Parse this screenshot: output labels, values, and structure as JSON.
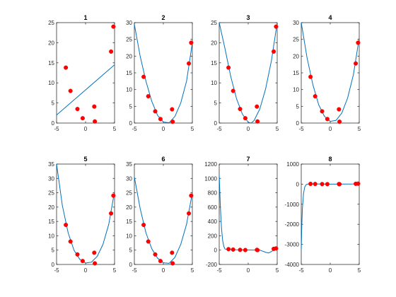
{
  "figure": {
    "background": "#ffffff",
    "point_color": "#ff0000",
    "curve_color": "#0072bd"
  },
  "chart_data": [
    {
      "type": "scatter",
      "title": "1",
      "xlim": [
        -5,
        5
      ],
      "ylim": [
        0,
        25
      ],
      "xticks": [
        -5,
        0,
        5
      ],
      "yticks": [
        0,
        5,
        10,
        15,
        20,
        25
      ],
      "points": {
        "x": [
          -3.4,
          -2.6,
          -1.4,
          -0.5,
          1.5,
          1.6,
          4.4,
          4.8
        ],
        "y": [
          13.8,
          8.0,
          3.5,
          1.2,
          4.1,
          0.4,
          17.8,
          24.0
        ]
      },
      "curve": {
        "x": [
          -5,
          5
        ],
        "y": [
          2.0,
          14.5
        ]
      }
    },
    {
      "type": "scatter",
      "title": "2",
      "xlim": [
        -5,
        5
      ],
      "ylim": [
        0,
        30
      ],
      "xticks": [
        -5,
        0,
        5
      ],
      "yticks": [
        0,
        5,
        10,
        15,
        20,
        25,
        30
      ],
      "points": {
        "x": [
          -3.4,
          -2.6,
          -1.4,
          -0.5,
          1.5,
          1.6,
          4.4,
          4.8
        ],
        "y": [
          13.8,
          8.0,
          3.5,
          1.2,
          4.1,
          0.4,
          17.8,
          24.0
        ]
      },
      "curve": {
        "x": [
          -5,
          -4,
          -3,
          -2,
          -1,
          0,
          1,
          2,
          3,
          4,
          5
        ],
        "y": [
          29.5,
          20.0,
          12.5,
          6.5,
          2.3,
          0.3,
          0.1,
          2.0,
          6.0,
          12.5,
          24.0
        ]
      }
    },
    {
      "type": "scatter",
      "title": "3",
      "xlim": [
        -5,
        5
      ],
      "ylim": [
        0,
        25
      ],
      "xticks": [
        -5,
        0,
        5
      ],
      "yticks": [
        0,
        5,
        10,
        15,
        20,
        25
      ],
      "points": {
        "x": [
          -3.4,
          -2.6,
          -1.4,
          -0.5,
          1.5,
          1.6,
          4.4,
          4.8
        ],
        "y": [
          13.8,
          8.0,
          3.5,
          1.2,
          4.1,
          0.4,
          17.8,
          24.0
        ]
      },
      "curve": {
        "x": [
          -5,
          -4,
          -3,
          -2,
          -1,
          0,
          0.5,
          1,
          2,
          3,
          4,
          5
        ],
        "y": [
          25.0,
          18.5,
          11.5,
          6.0,
          2.2,
          0.2,
          0.0,
          0.6,
          3.5,
          8.5,
          15.5,
          25.0
        ]
      }
    },
    {
      "type": "scatter",
      "title": "4",
      "xlim": [
        -5,
        5
      ],
      "ylim": [
        0,
        30
      ],
      "xticks": [
        -5,
        0,
        5
      ],
      "yticks": [
        0,
        5,
        10,
        15,
        20,
        25,
        30
      ],
      "points": {
        "x": [
          -3.4,
          -2.6,
          -1.4,
          -0.5,
          1.5,
          1.6,
          4.4,
          4.8
        ],
        "y": [
          13.8,
          8.0,
          3.5,
          1.2,
          4.1,
          0.4,
          17.8,
          24.0
        ]
      },
      "curve": {
        "x": [
          -5,
          -4,
          -3,
          -2,
          -1,
          0,
          1,
          2,
          3,
          4,
          5
        ],
        "y": [
          30.0,
          19.5,
          11.5,
          5.5,
          2.0,
          0.5,
          0.8,
          3.0,
          7.5,
          14.5,
          25.5
        ]
      }
    },
    {
      "type": "scatter",
      "title": "5",
      "xlim": [
        -5,
        5
      ],
      "ylim": [
        0,
        35
      ],
      "xticks": [
        -5,
        0,
        5
      ],
      "yticks": [
        0,
        5,
        10,
        15,
        20,
        25,
        30,
        35
      ],
      "points": {
        "x": [
          -3.4,
          -2.6,
          -1.4,
          -0.5,
          1.5,
          1.6,
          4.4,
          4.8
        ],
        "y": [
          13.8,
          8.0,
          3.5,
          1.2,
          4.1,
          0.4,
          17.8,
          24.0
        ]
      },
      "curve": {
        "x": [
          -5,
          -4,
          -3,
          -2,
          -1,
          0,
          1,
          2,
          3,
          4,
          5
        ],
        "y": [
          35.0,
          20.5,
          11.0,
          5.0,
          1.8,
          0.5,
          0.8,
          2.8,
          7.0,
          14.0,
          25.5
        ]
      }
    },
    {
      "type": "scatter",
      "title": "6",
      "xlim": [
        -5,
        5
      ],
      "ylim": [
        0,
        35
      ],
      "xticks": [
        -5,
        0,
        5
      ],
      "yticks": [
        0,
        5,
        10,
        15,
        20,
        25,
        30,
        35
      ],
      "points": {
        "x": [
          -3.4,
          -2.6,
          -1.4,
          -0.5,
          1.5,
          1.6,
          4.4,
          4.8
        ],
        "y": [
          13.8,
          8.0,
          3.5,
          1.2,
          4.1,
          0.4,
          17.8,
          24.0
        ]
      },
      "curve": {
        "x": [
          -5,
          -4,
          -3,
          -2,
          -1,
          0,
          1,
          2,
          3,
          4,
          5
        ],
        "y": [
          30.5,
          19.5,
          11.0,
          5.5,
          2.2,
          0.6,
          0.4,
          2.5,
          7.0,
          14.0,
          25.0
        ]
      }
    },
    {
      "type": "scatter",
      "title": "7",
      "xlim": [
        -5,
        5
      ],
      "ylim": [
        -200,
        1200
      ],
      "xticks": [
        -5,
        0,
        5
      ],
      "yticks": [
        -200,
        0,
        200,
        400,
        600,
        800,
        1000,
        1200
      ],
      "points": {
        "x": [
          -3.4,
          -2.6,
          -1.4,
          -0.5,
          1.5,
          1.6,
          4.4,
          4.8
        ],
        "y": [
          13.8,
          8.0,
          3.5,
          1.2,
          4.1,
          0.4,
          17.8,
          24.0
        ]
      },
      "curve": {
        "x": [
          -5,
          -4.8,
          -4.6,
          -4.4,
          -4.2,
          -4,
          -3.5,
          -3,
          -2,
          0,
          2,
          3,
          3.5,
          4,
          4.5,
          5
        ],
        "y": [
          1050,
          600,
          300,
          130,
          50,
          15,
          10,
          10,
          5,
          2,
          0,
          -30,
          -40,
          -20,
          10,
          30
        ]
      }
    },
    {
      "type": "scatter",
      "title": "8",
      "xlim": [
        -5,
        5
      ],
      "ylim": [
        -4000,
        1000
      ],
      "xticks": [
        -5,
        0,
        5
      ],
      "yticks": [
        -4000,
        -3000,
        -2000,
        -1000,
        0,
        1000
      ],
      "points": {
        "x": [
          -3.4,
          -2.6,
          -1.4,
          -0.5,
          1.5,
          1.6,
          4.4,
          4.8
        ],
        "y": [
          13.8,
          8.0,
          3.5,
          1.2,
          4.1,
          0.4,
          17.8,
          24.0
        ]
      },
      "curve": {
        "x": [
          -5,
          -4.9,
          -4.8,
          -4.6,
          -4.4,
          -4.2,
          -4,
          -3.5,
          -3,
          0,
          3,
          4,
          4.5,
          5
        ],
        "y": [
          -3300,
          -2000,
          -1200,
          -450,
          -150,
          -40,
          0,
          10,
          10,
          0,
          5,
          10,
          20,
          30
        ]
      }
    }
  ]
}
